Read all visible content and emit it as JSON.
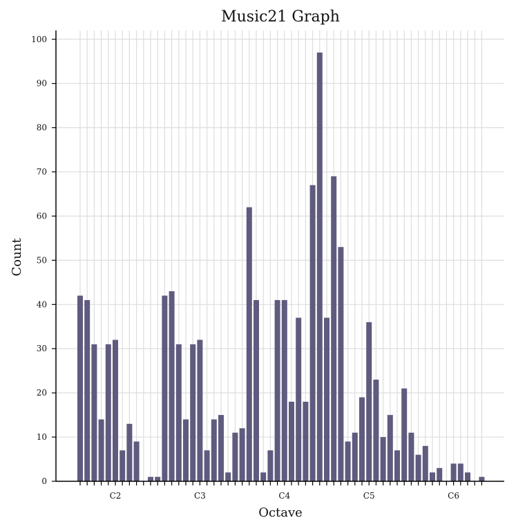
{
  "chart_data": {
    "type": "bar",
    "title": "Music21 Graph",
    "xlabel": "Octave",
    "ylabel": "Count",
    "ylim": [
      0,
      102
    ],
    "yticks": [
      0,
      10,
      20,
      30,
      40,
      50,
      60,
      70,
      80,
      90,
      100
    ],
    "octave_labels": [
      {
        "label": "C2",
        "index": 5
      },
      {
        "label": "C3",
        "index": 17
      },
      {
        "label": "C4",
        "index": 29
      },
      {
        "label": "C5",
        "index": 41
      },
      {
        "label": "C6",
        "index": 53
      }
    ],
    "values": [
      42,
      41,
      31,
      14,
      31,
      32,
      7,
      13,
      9,
      0,
      1,
      1,
      42,
      43,
      31,
      14,
      31,
      32,
      7,
      14,
      15,
      2,
      11,
      12,
      62,
      41,
      2,
      7,
      41,
      41,
      18,
      37,
      18,
      67,
      97,
      37,
      69,
      53,
      9,
      11,
      19,
      36,
      23,
      10,
      15,
      7,
      21,
      11,
      6,
      8,
      2,
      3,
      0,
      4,
      4,
      2,
      0,
      1
    ],
    "grid": true,
    "bar_color": "#5f5b7e",
    "grid_color": "#dddddd"
  }
}
